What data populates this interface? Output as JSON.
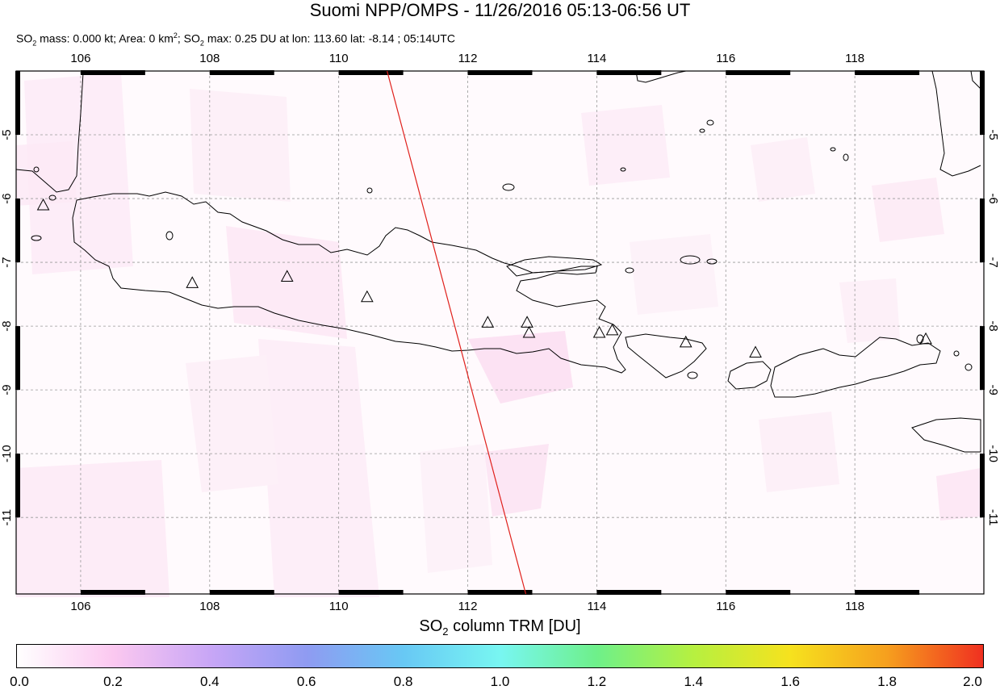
{
  "title": "Suomi NPP/OMPS - 11/26/2016 05:13-06:56 UT",
  "subtitle": {
    "p1": "SO",
    "sub1": "2",
    "p2": " mass: 0.000 kt; Area: 0 km",
    "sup1": "2",
    "p3": "; SO",
    "sub2": "2",
    "p4": " max: 0.25 DU at lon: 113.60 lat: -8.14 ; 05:14UTC"
  },
  "map": {
    "lon_range": [
      105,
      120
    ],
    "lat_range": [
      -12.2,
      -4.0
    ],
    "lon_ticks": [
      "106",
      "108",
      "110",
      "112",
      "114",
      "116",
      "118"
    ],
    "lat_ticks": [
      "-5",
      "-6",
      "-7",
      "-8",
      "-9",
      "-10",
      "-11"
    ],
    "lon_tick_values": [
      106,
      108,
      110,
      112,
      114,
      116,
      118
    ],
    "lat_tick_values": [
      -5,
      -6,
      -7,
      -8,
      -9,
      -10,
      -11
    ],
    "orbit_track": {
      "start": [
        110.75,
        -4.0
      ],
      "end": [
        112.9,
        -12.2
      ],
      "color": "#e0201c"
    },
    "volcanoes": [
      [
        105.42,
        -6.1
      ],
      [
        107.73,
        -7.32
      ],
      [
        109.2,
        -7.22
      ],
      [
        110.44,
        -7.54
      ],
      [
        112.31,
        -7.94
      ],
      [
        112.92,
        -7.94
      ],
      [
        112.95,
        -8.1
      ],
      [
        114.04,
        -8.1
      ],
      [
        114.24,
        -8.06
      ],
      [
        115.38,
        -8.25
      ],
      [
        116.46,
        -8.41
      ],
      [
        119.1,
        -8.2
      ]
    ]
  },
  "colorbar": {
    "title_p1": "SO",
    "title_sub": "2",
    "title_p2": " column TRM [DU]",
    "ticks": [
      "0.0",
      "0.2",
      "0.4",
      "0.6",
      "0.8",
      "1.0",
      "1.2",
      "1.4",
      "1.6",
      "1.8",
      "2.0"
    ],
    "range": [
      0.0,
      2.0
    ],
    "colors": [
      "#ffffff",
      "#fbc8f0",
      "#c8a6f6",
      "#8f9bf2",
      "#68c8f4",
      "#78f6f2",
      "#6ef08a",
      "#b6f040",
      "#f6e21e",
      "#f6a01e",
      "#f03020"
    ]
  }
}
